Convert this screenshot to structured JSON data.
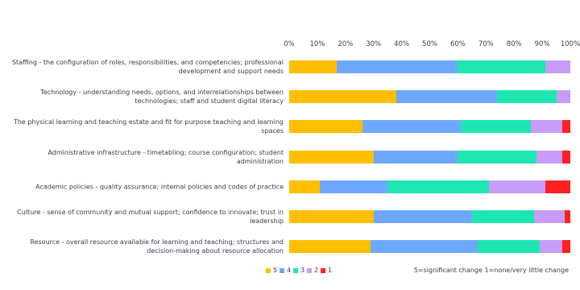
{
  "chart_data": {
    "type": "bar",
    "orientation": "horizontal",
    "stacked": true,
    "categories": [
      "Staffing - the configuration of roles, responsibilities, and competencies; professional development and support needs",
      "Technology - understanding needs, options, and interrelationships between technologies; staff and student digital literacy",
      "The physical  learning and teaching estate and fit for purpose teaching and learning spaces",
      "Administrative infrastructure - timetabling; course configuration; student administration",
      "Academic policies - quality assurance; internal policies and codes of practice",
      "Culture - sense of community and mutual support; confidence to innovate; trust in leadership",
      "Resource - overall resource available for learning and teaching; structures and decision-making about resource allocation"
    ],
    "series": [
      {
        "name": "5",
        "color": "#ffbf00",
        "values": [
          17,
          38,
          26,
          30,
          11,
          30,
          29
        ]
      },
      {
        "name": "4",
        "color": "#6ea8fe",
        "values": [
          43,
          36,
          35,
          30,
          24,
          35,
          38
        ]
      },
      {
        "name": "3",
        "color": "#1ee6b0",
        "values": [
          31,
          21,
          25,
          28,
          36,
          22,
          22
        ]
      },
      {
        "name": "2",
        "color": "#c69cf8",
        "values": [
          9,
          5,
          11,
          9,
          20,
          11,
          8
        ]
      },
      {
        "name": "1",
        "color": "#ff2020",
        "values": [
          0,
          0,
          3,
          3,
          9,
          2,
          3
        ]
      }
    ],
    "xlim": [
      0,
      100
    ],
    "xticks": [
      {
        "value": 0,
        "label": "0%"
      },
      {
        "value": 10,
        "label": "10%"
      },
      {
        "value": 20,
        "label": "20%"
      },
      {
        "value": 30,
        "label": "30%"
      },
      {
        "value": 40,
        "label": "40%"
      },
      {
        "value": 50,
        "label": "50%"
      },
      {
        "value": 60,
        "label": "60%"
      },
      {
        "value": 70,
        "label": "70%"
      },
      {
        "value": 80,
        "label": "80%"
      },
      {
        "value": 90,
        "label": "90%"
      },
      {
        "value": 100,
        "label": "100%"
      }
    ],
    "annotation": "5=significant change 1=none/very little change"
  }
}
